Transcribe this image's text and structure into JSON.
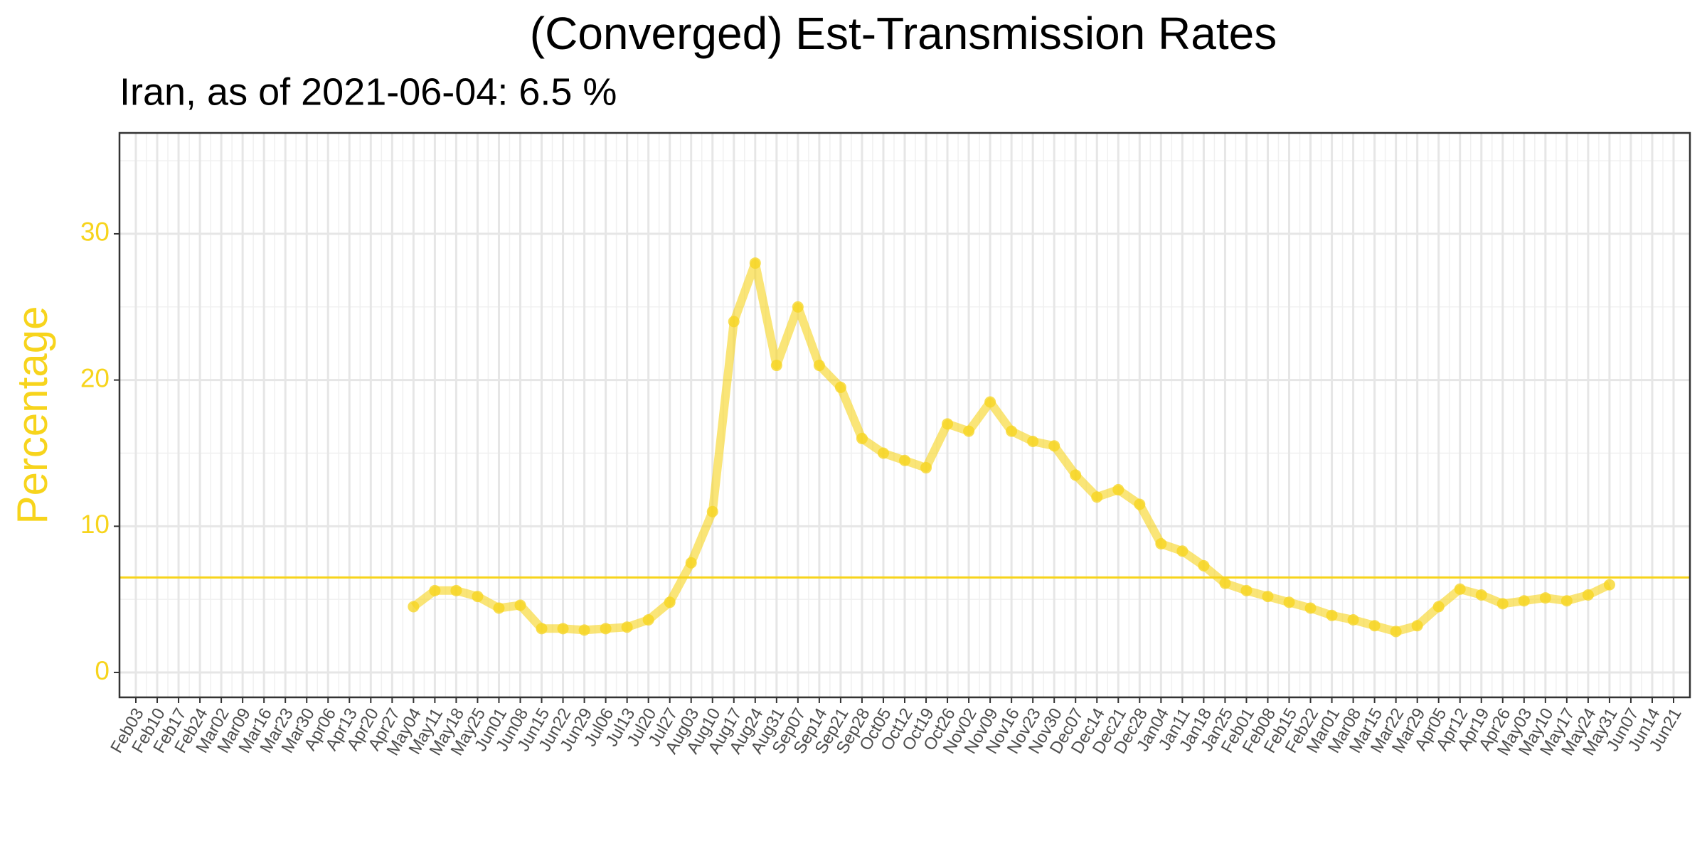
{
  "chart_data": {
    "type": "line",
    "title": "(Converged) Est-Transmission Rates",
    "subtitle": "Iran, as of 2021-06-04:  6.5 %",
    "y_label": "Percentage",
    "categories": [
      "Feb03",
      "Feb10",
      "Feb17",
      "Feb24",
      "Mar02",
      "Mar09",
      "Mar16",
      "Mar23",
      "Mar30",
      "Apr06",
      "Apr13",
      "Apr20",
      "Apr27",
      "May04",
      "May11",
      "May18",
      "May25",
      "Jun01",
      "Jun08",
      "Jun15",
      "Jun22",
      "Jun29",
      "Jul06",
      "Jul13",
      "Jul20",
      "Jul27",
      "Aug03",
      "Aug10",
      "Aug17",
      "Aug24",
      "Aug31",
      "Sep07",
      "Sep14",
      "Sep21",
      "Sep28",
      "Oct05",
      "Oct12",
      "Oct19",
      "Oct26",
      "Nov02",
      "Nov09",
      "Nov16",
      "Nov23",
      "Nov30",
      "Dec07",
      "Dec14",
      "Dec21",
      "Dec28",
      "Jan04",
      "Jan11",
      "Jan18",
      "Jan25",
      "Feb01",
      "Feb08",
      "Feb15",
      "Feb22",
      "Mar01",
      "Mar08",
      "Mar15",
      "Mar22",
      "Mar29",
      "Apr05",
      "Apr12",
      "Apr19",
      "Apr26",
      "May03",
      "May10",
      "May17",
      "May24",
      "May31",
      "Jun07",
      "Jun14",
      "Jun21"
    ],
    "values": [
      null,
      null,
      null,
      null,
      null,
      null,
      null,
      null,
      null,
      null,
      null,
      null,
      null,
      4.5,
      5.6,
      5.6,
      5.2,
      4.4,
      4.6,
      3.0,
      3.0,
      2.9,
      3.0,
      3.1,
      3.6,
      4.8,
      7.5,
      11,
      24,
      28,
      21,
      25,
      21,
      19.5,
      16,
      15,
      14.5,
      14,
      17,
      16.5,
      18.5,
      16.5,
      15.8,
      15.5,
      13.5,
      12,
      12.5,
      11.5,
      8.8,
      8.3,
      7.3,
      6.1,
      5.6,
      5.2,
      4.8,
      4.4,
      3.9,
      3.6,
      3.2,
      2.8,
      3.2,
      4.5,
      5.7,
      5.3,
      4.7,
      4.9,
      5.1,
      4.9,
      5.3,
      6.0,
      null,
      null,
      null
    ],
    "color": "#f7d41c",
    "reference_line": 6.5,
    "reference_color": "#f7d41c",
    "axis_label_color": "#f7d41c",
    "ylim": [
      -1.7,
      36.9
    ],
    "yticks": [
      0,
      10,
      20,
      30
    ],
    "minor_yticks": [
      5,
      15,
      25,
      35
    ],
    "grid": true
  }
}
